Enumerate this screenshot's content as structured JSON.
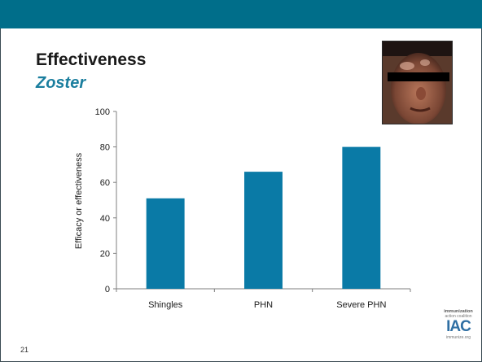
{
  "slide": {
    "title": "Effectiveness",
    "subtitle": "Zoster",
    "number": "21",
    "band_color": "#006e8a",
    "accent_color": "#1a7e9e"
  },
  "logo": {
    "line1": "immunization",
    "line2": "action coalition",
    "mark": "IAC",
    "url": "immunize.org"
  },
  "photo": {
    "icon": "patient-face-photo"
  },
  "chart_data": {
    "type": "bar",
    "categories": [
      "Shingles",
      "PHN",
      "Severe PHN"
    ],
    "values": [
      51,
      66,
      80
    ],
    "title": "",
    "xlabel": "",
    "ylabel": "Efficacy or effectiveness",
    "ylim": [
      0,
      100
    ],
    "yticks": [
      0,
      20,
      40,
      60,
      80,
      100
    ],
    "bar_color": "#0a7aa6",
    "grid": false,
    "legend": "none"
  }
}
